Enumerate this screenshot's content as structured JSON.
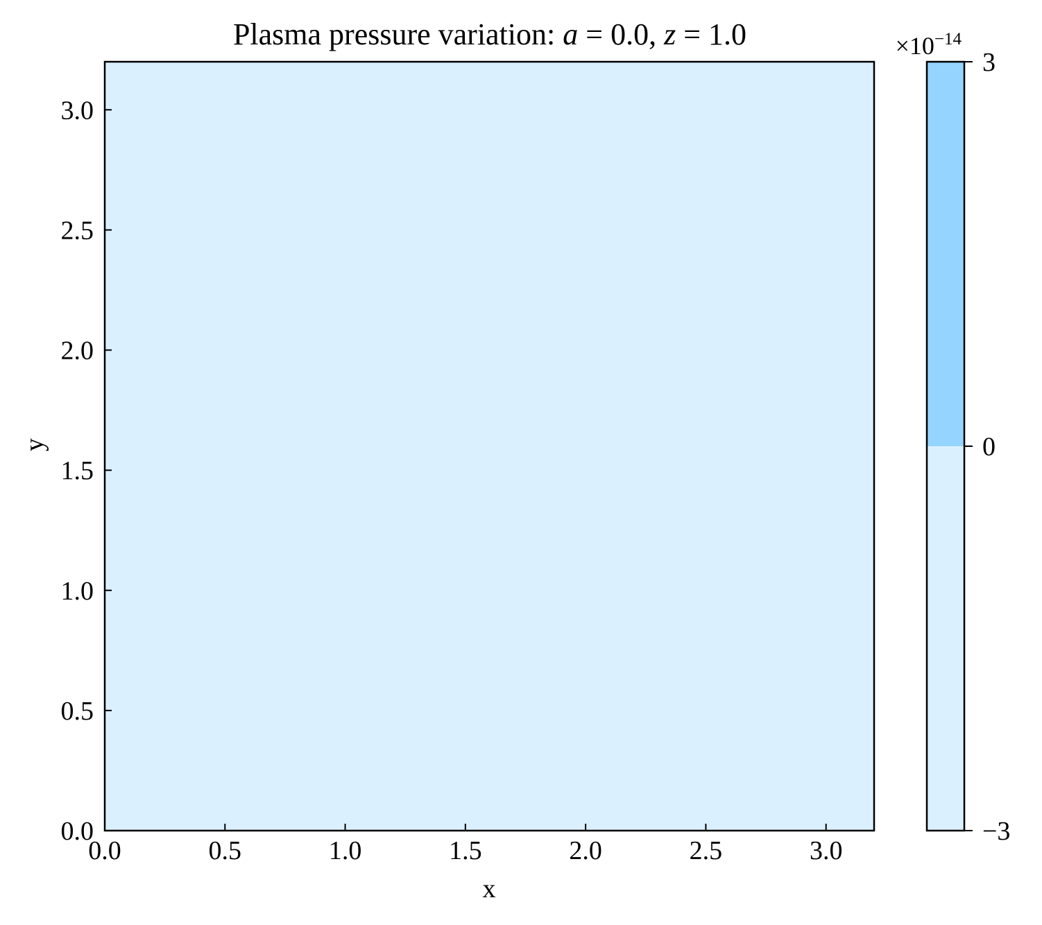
{
  "chart_data": {
    "type": "heatmap",
    "title": {
      "prefix": "Plasma pressure variation: ",
      "var1": "a",
      "eq1": " = 0.0, ",
      "var2": "z",
      "eq2": " = 1.0"
    },
    "xlabel": "x",
    "ylabel": "y",
    "xlim": [
      0.0,
      3.2
    ],
    "ylim": [
      0.0,
      3.2
    ],
    "x_ticks": [
      {
        "value": 0.0,
        "label": "0.0"
      },
      {
        "value": 0.5,
        "label": "0.5"
      },
      {
        "value": 1.0,
        "label": "1.0"
      },
      {
        "value": 1.5,
        "label": "1.5"
      },
      {
        "value": 2.0,
        "label": "2.0"
      },
      {
        "value": 2.5,
        "label": "2.5"
      },
      {
        "value": 3.0,
        "label": "3.0"
      }
    ],
    "y_ticks": [
      {
        "value": 0.0,
        "label": "0.0"
      },
      {
        "value": 0.5,
        "label": "0.5"
      },
      {
        "value": 1.0,
        "label": "1.0"
      },
      {
        "value": 1.5,
        "label": "1.5"
      },
      {
        "value": 2.0,
        "label": "2.0"
      },
      {
        "value": 2.5,
        "label": "2.5"
      },
      {
        "value": 3.0,
        "label": "3.0"
      }
    ],
    "field": {
      "description_level": "uniform",
      "value_range": [
        -3e-14,
        0
      ],
      "color": "#dbf0ff"
    },
    "colorbar": {
      "range": [
        -3,
        3
      ],
      "multiplier": {
        "base": "×10",
        "exponent": "−14"
      },
      "ticks": [
        {
          "value": 3,
          "label": "3"
        },
        {
          "value": 0,
          "label": "0"
        },
        {
          "value": -3,
          "label": "−3"
        }
      ],
      "levels": [
        {
          "from": -3,
          "to": 0,
          "color": "#dbf0ff"
        },
        {
          "from": 0,
          "to": 3,
          "color": "#94d4ff"
        }
      ]
    }
  }
}
